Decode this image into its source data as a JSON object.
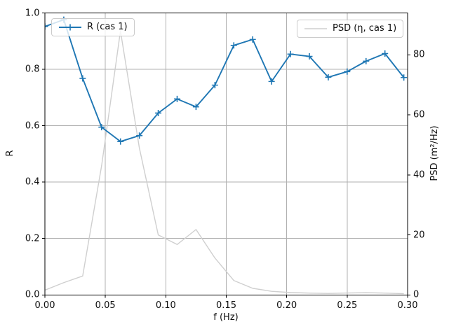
{
  "figure": {
    "background": "#ffffff"
  },
  "chart_data": {
    "type": "line",
    "title": "",
    "xlabel": "f (Hz)",
    "ylabel_left": "R",
    "ylabel_right": "PSD (m²/Hz)",
    "xlim": [
      0,
      0.3
    ],
    "ylim_left": [
      0,
      1.0
    ],
    "ylim_right": [
      0,
      94
    ],
    "grid": true,
    "grid_color": "#b0b0b0",
    "axis_color": "#000000",
    "x_tick_values": [
      0,
      0.05,
      0.1,
      0.15,
      0.2,
      0.25,
      0.3
    ],
    "x_tick_labels": [
      "0.00",
      "0.05",
      "0.10",
      "0.15",
      "0.20",
      "0.25",
      "0.30"
    ],
    "y_left_tick_values": [
      0,
      0.2,
      0.4,
      0.6,
      0.8,
      1.0
    ],
    "y_left_tick_labels": [
      "0.0",
      "0.2",
      "0.4",
      "0.6",
      "0.8",
      "1.0"
    ],
    "y_right_tick_values": [
      0,
      20,
      40,
      60,
      80
    ],
    "y_right_tick_labels": [
      "0",
      "20",
      "40",
      "60",
      "80"
    ],
    "series": [
      {
        "name": "R (cas 1)",
        "axis": "left",
        "color": "#1f77b4",
        "marker": "plus",
        "legend_loc": "upper left",
        "x": [
          0,
          0.015625,
          0.03125,
          0.046875,
          0.0625,
          0.078125,
          0.09375,
          0.109375,
          0.125,
          0.140625,
          0.15625,
          0.171875,
          0.1875,
          0.203125,
          0.21875,
          0.234375,
          0.25,
          0.265625,
          0.28125,
          0.296875
        ],
        "y": [
          0.952,
          0.976,
          0.768,
          0.595,
          0.544,
          0.565,
          0.645,
          0.695,
          0.667,
          0.744,
          0.885,
          0.906,
          0.757,
          0.854,
          0.846,
          0.772,
          0.792,
          0.829,
          0.856,
          0.771
        ]
      },
      {
        "name": "PSD (η, cas 1)",
        "axis": "right",
        "color": "#cfcfcf",
        "marker": "none",
        "legend_loc": "upper right",
        "x": [
          0,
          0.015625,
          0.03125,
          0.046875,
          0.0625,
          0.078125,
          0.09375,
          0.109375,
          0.125,
          0.140625,
          0.15625,
          0.171875,
          0.1875,
          0.203125,
          0.21875,
          0.234375,
          0.25,
          0.265625,
          0.28125,
          0.296875
        ],
        "y": [
          1.6,
          4.1,
          6.3,
          43,
          88,
          49,
          20,
          16.8,
          21.8,
          12.3,
          4.8,
          2.2,
          1.2,
          0.8,
          0.6,
          0.5,
          0.65,
          0.75,
          0.6,
          0.4
        ]
      }
    ]
  }
}
